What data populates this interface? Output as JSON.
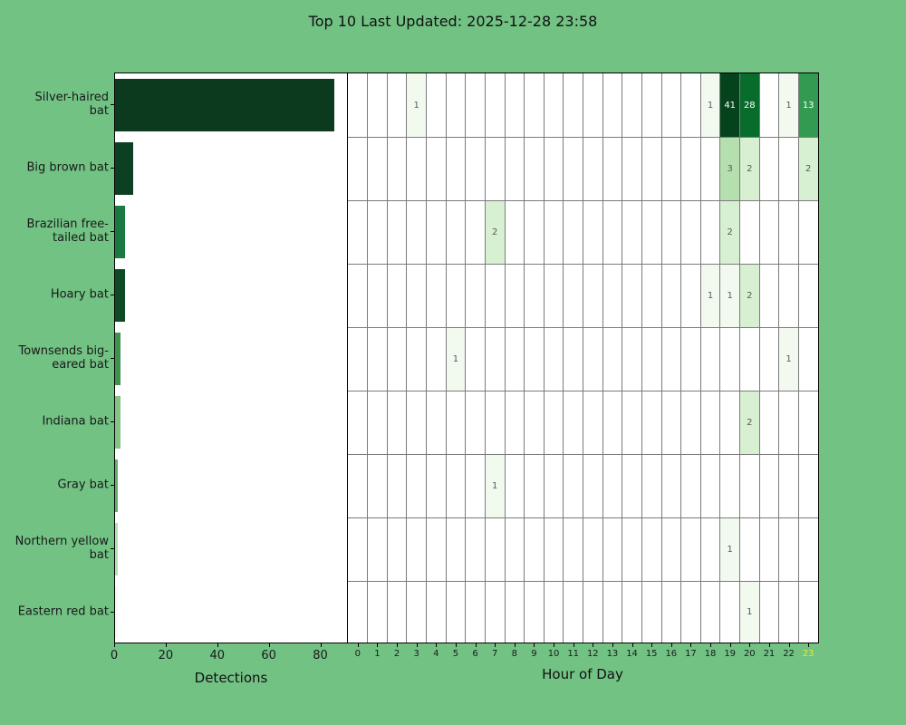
{
  "title": "Top 10 Last Updated: 2025-12-28 23:58",
  "colors": {
    "background": "#72c284",
    "plot_background": "#ffffff",
    "spine": "#000000",
    "gridline": "#7b7b7b",
    "tick_label": "#1a1a1a",
    "highlight_tick": "#e3ea35",
    "annotation_dark_text": "#595959",
    "annotation_light_text": "#ffffff"
  },
  "chart_data": [
    {
      "type": "bar",
      "orientation": "horizontal",
      "xlabel": "Detections",
      "xlim": [
        0,
        90
      ],
      "xticks": [
        "0",
        "20",
        "40",
        "60",
        "80"
      ],
      "xtick_values": [
        0,
        20,
        40,
        60,
        80
      ],
      "categories": [
        "Silver-haired bat",
        "Big brown bat",
        "Brazilian free-tailed bat",
        "Hoary bat",
        "Townsends big-eared bat",
        "Indiana bat",
        "Gray bat",
        "Northern yellow bat",
        "Eastern red bat"
      ],
      "category_label_lines": [
        [
          "Silver-haired",
          "bat"
        ],
        [
          "Big brown bat"
        ],
        [
          "Brazilian free-",
          "tailed bat"
        ],
        [
          "Hoary bat"
        ],
        [
          "Townsends big-",
          "eared bat"
        ],
        [
          "Indiana bat"
        ],
        [
          "Gray bat"
        ],
        [
          "Northern yellow",
          "bat"
        ],
        [
          "Eastern red bat"
        ]
      ],
      "values": [
        85,
        7,
        4,
        4,
        2,
        2,
        1,
        1,
        1
      ],
      "bar_colors": [
        "#0b3a1e",
        "#0d4023",
        "#1b7a3f",
        "#0e4a26",
        "#3f914f",
        "#85c287",
        "#67ad6d",
        "#b7e0b2",
        "#f4faf2"
      ]
    },
    {
      "type": "heatmap",
      "xlabel": "Hour of Day",
      "hours": [
        "0",
        "1",
        "2",
        "3",
        "4",
        "5",
        "6",
        "7",
        "8",
        "9",
        "10",
        "11",
        "12",
        "13",
        "14",
        "15",
        "16",
        "17",
        "18",
        "19",
        "20",
        "21",
        "22",
        "23"
      ],
      "highlighted_hour": "23",
      "rows": [
        "Silver-haired bat",
        "Big brown bat",
        "Brazilian free-tailed bat",
        "Hoary bat",
        "Townsends big-eared bat",
        "Indiana bat",
        "Gray bat",
        "Northern yellow bat",
        "Eastern red bat"
      ],
      "cells": [
        {
          "row": 0,
          "hour": 3,
          "value": 1
        },
        {
          "row": 0,
          "hour": 18,
          "value": 1
        },
        {
          "row": 0,
          "hour": 19,
          "value": 41
        },
        {
          "row": 0,
          "hour": 20,
          "value": 28
        },
        {
          "row": 0,
          "hour": 22,
          "value": 1
        },
        {
          "row": 0,
          "hour": 23,
          "value": 13
        },
        {
          "row": 1,
          "hour": 19,
          "value": 3
        },
        {
          "row": 1,
          "hour": 20,
          "value": 2
        },
        {
          "row": 1,
          "hour": 23,
          "value": 2
        },
        {
          "row": 2,
          "hour": 7,
          "value": 2
        },
        {
          "row": 2,
          "hour": 19,
          "value": 2
        },
        {
          "row": 3,
          "hour": 18,
          "value": 1
        },
        {
          "row": 3,
          "hour": 19,
          "value": 1
        },
        {
          "row": 3,
          "hour": 20,
          "value": 2
        },
        {
          "row": 4,
          "hour": 5,
          "value": 1
        },
        {
          "row": 4,
          "hour": 22,
          "value": 1
        },
        {
          "row": 5,
          "hour": 20,
          "value": 2
        },
        {
          "row": 6,
          "hour": 7,
          "value": 1
        },
        {
          "row": 7,
          "hour": 19,
          "value": 1
        },
        {
          "row": 8,
          "hour": 20,
          "value": 1
        }
      ],
      "value_colors": {
        "1": "#f2faef",
        "2": "#d8f0d2",
        "3": "#b5dfae",
        "13": "#339a52",
        "28": "#086c2c",
        "41": "#05431d"
      },
      "white_text_min_value": 13
    }
  ]
}
